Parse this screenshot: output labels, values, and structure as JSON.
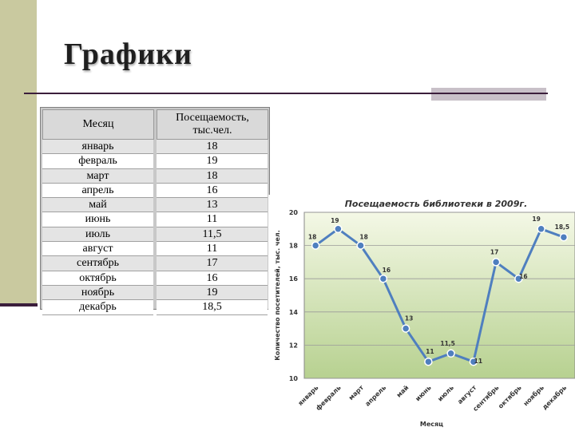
{
  "slide": {
    "title": "Графики"
  },
  "table": {
    "headers": [
      "Месяц",
      "Посещаемость,\nтыс.чел."
    ],
    "rows": [
      {
        "month": "январь",
        "value": "18"
      },
      {
        "month": "февраль",
        "value": "19"
      },
      {
        "month": "март",
        "value": "18"
      },
      {
        "month": "апрель",
        "value": "16"
      },
      {
        "month": "май",
        "value": "13"
      },
      {
        "month": "июнь",
        "value": "11"
      },
      {
        "month": "июль",
        "value": "11,5"
      },
      {
        "month": "август",
        "value": "11"
      },
      {
        "month": "сентябрь",
        "value": "17"
      },
      {
        "month": "октябрь",
        "value": "16"
      },
      {
        "month": "ноябрь",
        "value": "19"
      },
      {
        "month": "декабрь",
        "value": "18,5"
      }
    ]
  },
  "chart_data": {
    "type": "line",
    "title": "Посещаемость библиотеки в 2009г.",
    "xlabel": "Месяц",
    "ylabel": "Количество посетителей, тыс. чел.",
    "categories": [
      "январь",
      "февраль",
      "март",
      "апрель",
      "май",
      "июнь",
      "июль",
      "август",
      "сентябрь",
      "октябрь",
      "ноябрь",
      "декабрь"
    ],
    "values": [
      18,
      19,
      18,
      16,
      13,
      11,
      11.5,
      11,
      17,
      16,
      19,
      18.5
    ],
    "data_labels": [
      "18",
      "19",
      "18",
      "16",
      "13",
      "11",
      "11,5",
      "11",
      "17",
      "16",
      "19",
      "18,5"
    ],
    "ylim": [
      10,
      20
    ],
    "yticks": [
      "10",
      "12",
      "14",
      "16",
      "18",
      "20"
    ],
    "grid": true,
    "legend": "none",
    "line_color": "#4f7fbf",
    "marker_color": "#4f7fbf",
    "plot_bg_top": "#f4f8e6",
    "plot_bg_bottom": "#b7d190"
  }
}
